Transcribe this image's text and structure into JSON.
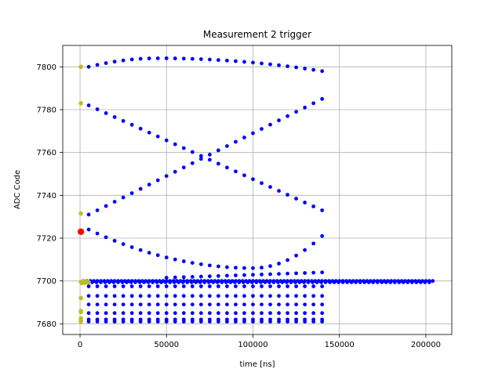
{
  "chart_data": {
    "type": "scatter",
    "title": "Measurement 2 trigger",
    "xlabel": "time [ns]",
    "ylabel": "ADC Code",
    "xlim": [
      -10000,
      215000
    ],
    "ylim": [
      7675,
      7810
    ],
    "xticks": [
      0,
      50000,
      100000,
      150000,
      200000
    ],
    "xtick_labels": [
      "0",
      "50000",
      "100000",
      "150000",
      "200000"
    ],
    "yticks": [
      7680,
      7700,
      7720,
      7740,
      7760,
      7780,
      7800
    ],
    "ytick_labels": [
      "7680",
      "7700",
      "7720",
      "7740",
      "7760",
      "7780",
      "7800"
    ],
    "grid": true,
    "colors": {
      "main": "#0000ff",
      "start": "#bcbd22",
      "trigger": "#ff0000",
      "grid": "#b0b0b0"
    },
    "series": [
      {
        "color": "#0000ff",
        "curves": [
          {
            "type": "arc",
            "x0": 5000,
            "x1": 140000,
            "dx": 5000,
            "y_start": 7800,
            "y_peak": 7804,
            "x_peak": 45000,
            "y_end": 7798
          },
          {
            "type": "line",
            "x0": 5000,
            "x1": 140000,
            "dx": 5000,
            "y_start": 7782,
            "y_end": 7733
          },
          {
            "type": "line",
            "x0": 5000,
            "x1": 140000,
            "dx": 5000,
            "y_start": 7731,
            "y_end": 7785
          },
          {
            "type": "arc",
            "x0": 5000,
            "x1": 140000,
            "dx": 5000,
            "y_start": 7724,
            "y_peak": 7706,
            "x_peak": 100000,
            "y_end": 7721
          },
          {
            "type": "band",
            "x0": 2000,
            "x1": 204000,
            "dx": 2000,
            "y": 7700
          },
          {
            "type": "band",
            "x0": 2000,
            "x1": 204000,
            "dx": 2500,
            "y": 7699.4
          },
          {
            "type": "line",
            "x0": 5000,
            "x1": 140000,
            "dx": 5000,
            "y_start": 7697.5,
            "y_end": 7697.5
          },
          {
            "type": "line",
            "x0": 5000,
            "x1": 140000,
            "dx": 5000,
            "y_start": 7693,
            "y_end": 7693
          },
          {
            "type": "line",
            "x0": 5000,
            "x1": 140000,
            "dx": 5000,
            "y_start": 7689,
            "y_end": 7689
          },
          {
            "type": "line",
            "x0": 5000,
            "x1": 140000,
            "dx": 5000,
            "y_start": 7685,
            "y_end": 7685
          },
          {
            "type": "line",
            "x0": 5000,
            "x1": 140000,
            "dx": 5000,
            "y_start": 7682,
            "y_end": 7682
          },
          {
            "type": "line",
            "x0": 5000,
            "x1": 140000,
            "dx": 5000,
            "y_start": 7681,
            "y_end": 7681
          },
          {
            "type": "line",
            "x0": 50000,
            "x1": 140000,
            "dx": 5000,
            "y_start": 7701.5,
            "y_end": 7704
          }
        ]
      },
      {
        "color": "#bcbd22",
        "points": [
          [
            500,
            7800
          ],
          [
            500,
            7783
          ],
          [
            500,
            7731.5
          ],
          [
            500,
            7699.5
          ],
          [
            1000,
            7699
          ],
          [
            1500,
            7699.2
          ],
          [
            2000,
            7699.8
          ],
          [
            2500,
            7699.1
          ],
          [
            3000,
            7699.6
          ],
          [
            3500,
            7699.3
          ],
          [
            4000,
            7699.7
          ],
          [
            4500,
            7699.5
          ],
          [
            5000,
            7699.4
          ],
          [
            500,
            7692
          ],
          [
            500,
            7686
          ],
          [
            500,
            7685.5
          ],
          [
            500,
            7682.5
          ],
          [
            500,
            7681.5
          ],
          [
            500,
            7681
          ]
        ]
      },
      {
        "color": "#ff0000",
        "points": [
          [
            500,
            7723
          ]
        ]
      }
    ]
  }
}
